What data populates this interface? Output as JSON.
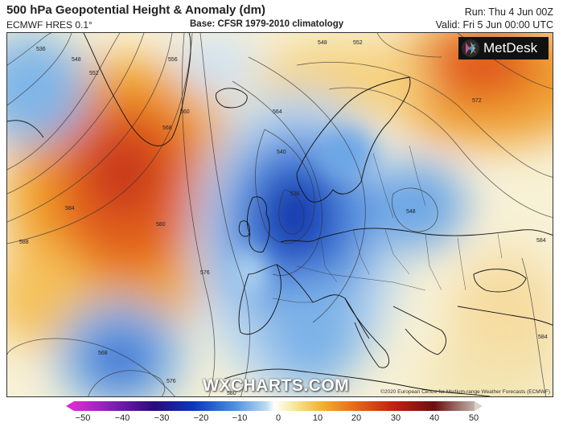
{
  "header": {
    "title": "500 hPa Geopotential Height & Anomaly (dm)",
    "model": "ECMWF HRES 0.1°",
    "base": "Base: CFSR 1979-2010 climatology",
    "run": "Run: Thu 4 Jun 00Z",
    "valid": "Valid: Fri 5 Jun 00:00 UTC"
  },
  "logo": {
    "text": "MetDesk",
    "icon": "metdesk-logo-icon"
  },
  "watermark": "WXCHARTS.COM",
  "credit": "©2020 European Centre for Medium-range Weather Forecasts (ECMWF)",
  "colorbar": {
    "ticks": [
      "−50",
      "−40",
      "−30",
      "−20",
      "−10",
      "0",
      "10",
      "20",
      "30",
      "40",
      "50"
    ],
    "min": -50,
    "max": 50
  },
  "contour_labels": [
    "536",
    "548",
    "552",
    "556",
    "560",
    "568",
    "584",
    "588",
    "580",
    "576",
    "564",
    "540",
    "548",
    "572",
    "568",
    "576",
    "580",
    "584",
    "548",
    "552",
    "536",
    "584"
  ],
  "colors": {
    "negative_max": "#0a38c0",
    "positive_max": "#c21e10",
    "neutral": "#ffffff"
  }
}
